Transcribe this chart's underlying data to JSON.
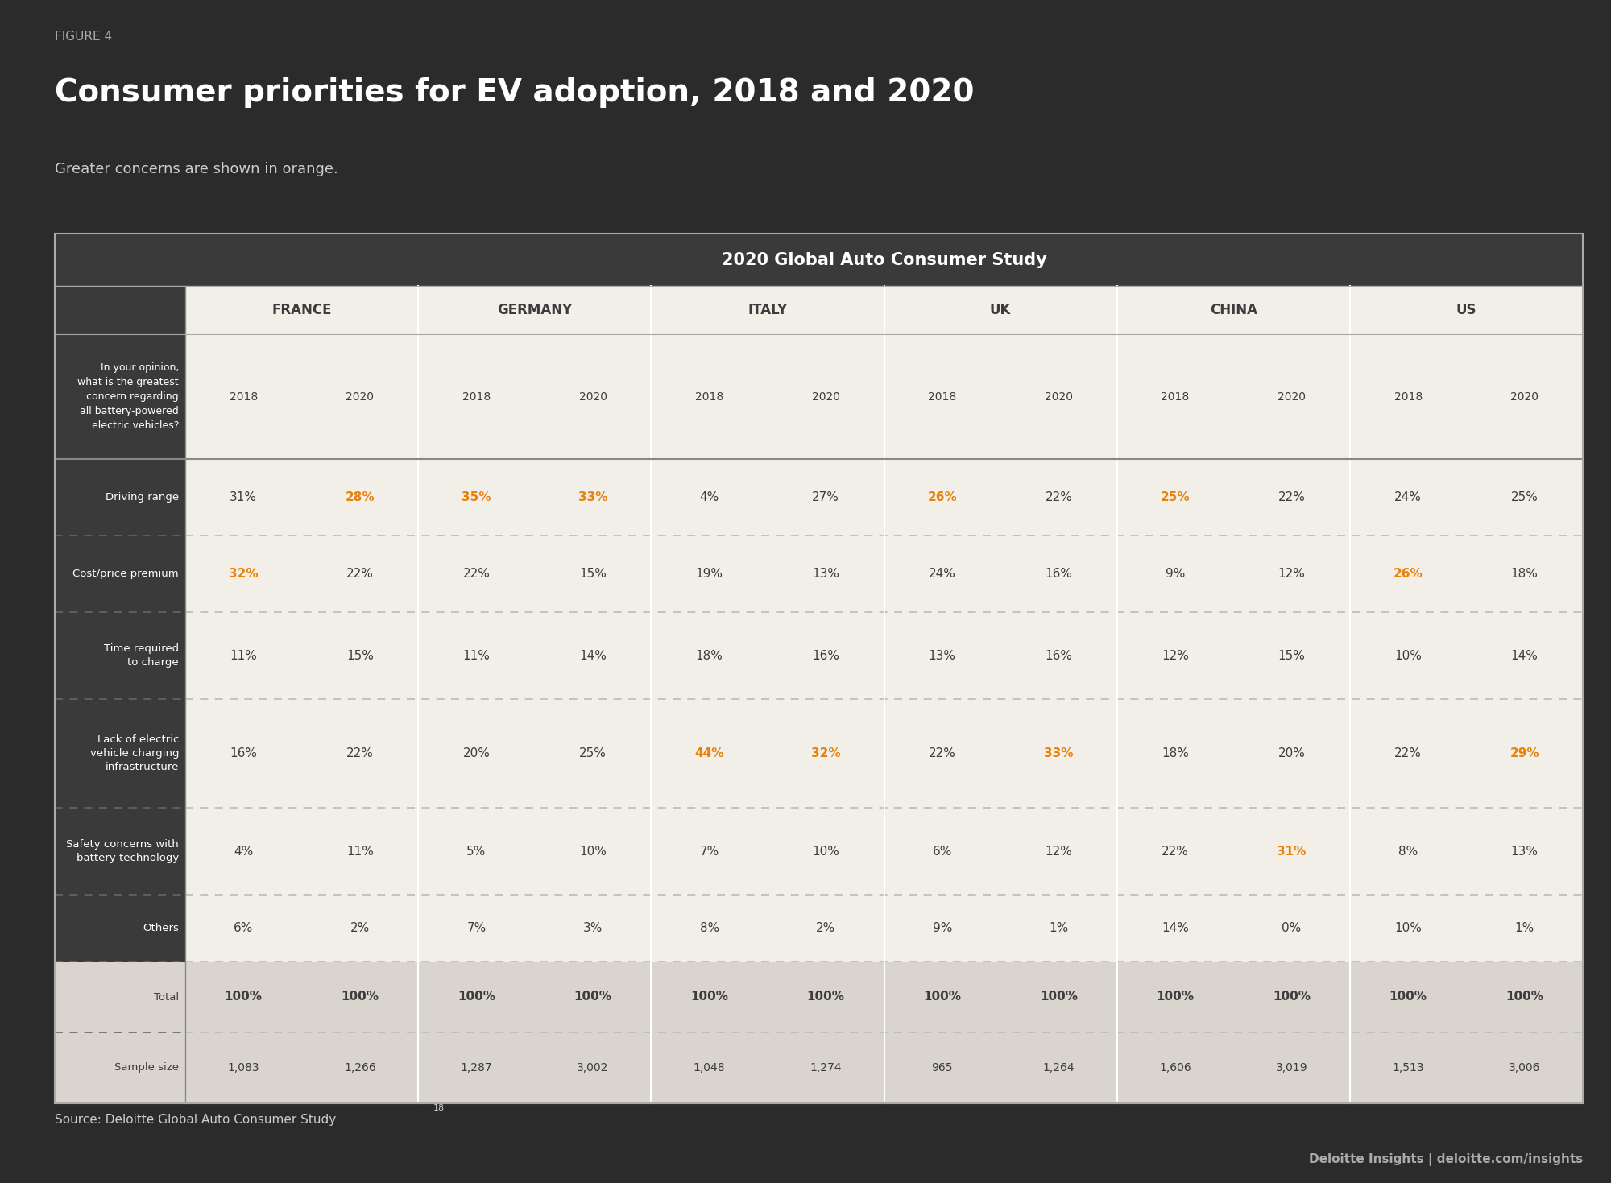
{
  "figure_label": "FIGURE 4",
  "title": "Consumer priorities for EV adoption, 2018 and 2020",
  "subtitle": "Greater concerns are shown in orange.",
  "table_header": "2020 Global Auto Consumer Study",
  "countries": [
    "FRANCE",
    "GERMANY",
    "ITALY",
    "UK",
    "CHINA",
    "US"
  ],
  "years": [
    "2018",
    "2020"
  ],
  "question_text": "In your opinion,\nwhat is the greatest\nconcern regarding\nall battery-powered\nelectric vehicles?",
  "row_labels_order": [
    "Driving range",
    "Cost/price premium",
    "Time required\nto charge",
    "Lack of electric\nvehicle charging\ninfrastructure",
    "Safety concerns with\nbattery technology",
    "Others",
    "Total",
    "Sample size"
  ],
  "data": {
    "Driving range": [
      "31%",
      "28%",
      "35%",
      "33%",
      "4%",
      "27%",
      "26%",
      "22%",
      "25%",
      "22%",
      "24%",
      "25%"
    ],
    "Cost/price premium": [
      "32%",
      "22%",
      "22%",
      "15%",
      "19%",
      "13%",
      "24%",
      "16%",
      "9%",
      "12%",
      "26%",
      "18%"
    ],
    "Time required\nto charge": [
      "11%",
      "15%",
      "11%",
      "14%",
      "18%",
      "16%",
      "13%",
      "16%",
      "12%",
      "15%",
      "10%",
      "14%"
    ],
    "Lack of electric\nvehicle charging\ninfrastructure": [
      "16%",
      "22%",
      "20%",
      "25%",
      "44%",
      "32%",
      "22%",
      "33%",
      "18%",
      "20%",
      "22%",
      "29%"
    ],
    "Safety concerns with\nbattery technology": [
      "4%",
      "11%",
      "5%",
      "10%",
      "7%",
      "10%",
      "6%",
      "12%",
      "22%",
      "31%",
      "8%",
      "13%"
    ],
    "Others": [
      "6%",
      "2%",
      "7%",
      "3%",
      "8%",
      "2%",
      "9%",
      "1%",
      "14%",
      "0%",
      "10%",
      "1%"
    ],
    "Total": [
      "100%",
      "100%",
      "100%",
      "100%",
      "100%",
      "100%",
      "100%",
      "100%",
      "100%",
      "100%",
      "100%",
      "100%"
    ],
    "Sample size": [
      "1,083",
      "1,266",
      "1,287",
      "3,002",
      "1,048",
      "1,274",
      "965",
      "1,264",
      "1,606",
      "3,019",
      "1,513",
      "3,006"
    ]
  },
  "orange_cells": {
    "Driving range": [
      false,
      true,
      true,
      true,
      false,
      false,
      true,
      false,
      true,
      false,
      false,
      false
    ],
    "Cost/price premium": [
      true,
      false,
      false,
      false,
      false,
      false,
      false,
      false,
      false,
      false,
      true,
      false
    ],
    "Time required\nto charge": [
      false,
      false,
      false,
      false,
      false,
      false,
      false,
      false,
      false,
      false,
      false,
      false
    ],
    "Lack of electric\nvehicle charging\ninfrastructure": [
      false,
      false,
      false,
      false,
      true,
      true,
      false,
      true,
      false,
      false,
      false,
      true
    ],
    "Safety concerns with\nbattery technology": [
      false,
      false,
      false,
      false,
      false,
      false,
      false,
      false,
      false,
      true,
      false,
      false
    ],
    "Others": [
      false,
      false,
      false,
      false,
      false,
      false,
      false,
      false,
      false,
      false,
      false,
      false
    ],
    "Total": [
      false,
      false,
      false,
      false,
      false,
      false,
      false,
      false,
      false,
      false,
      false,
      false
    ],
    "Sample size": [
      false,
      false,
      false,
      false,
      false,
      false,
      false,
      false,
      false,
      false,
      false,
      false
    ]
  },
  "source_text": "Source: Deloitte Global Auto Consumer Study",
  "source_superscript": "18",
  "footer_text": "Deloitte Insights | deloitte.com/insights",
  "bg_color": "#2B2B2B",
  "table_bg": "#F2EFE9",
  "header_bg_dark": "#3A3A3A",
  "country_row_bg": "#F2EFE9",
  "total_row_bg": "#D9D5CE",
  "label_col_bg": "#3A3A3A",
  "orange_color": "#E8820A",
  "dark_text": "#3C3C3C",
  "white_text": "#FFFFFF",
  "gray_text": "#888888",
  "dashed_color": "#BBBBBB",
  "dashed_dark_color": "#666666",
  "sep_line_color": "#888888"
}
